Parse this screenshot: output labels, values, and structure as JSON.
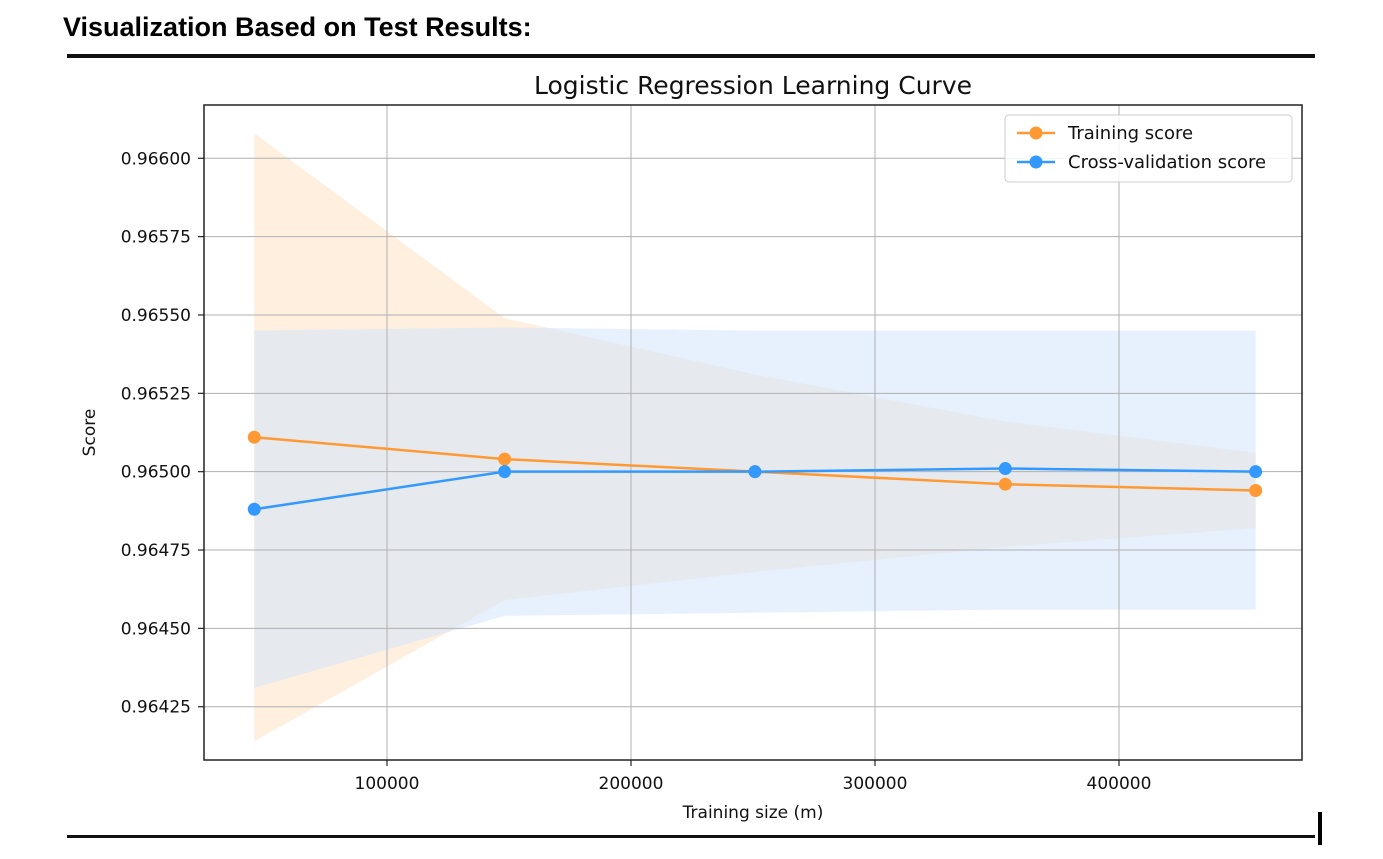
{
  "page": {
    "heading": "Visualization Based on Test Results:"
  },
  "chart_data": {
    "type": "line",
    "title": "Logistic Regression Learning Curve",
    "xlabel": "Training size (m)",
    "ylabel": "Score",
    "xlim": [
      25000,
      475000
    ],
    "ylim": [
      0.96408,
      0.96617
    ],
    "x_ticks": [
      100000,
      200000,
      300000,
      400000
    ],
    "x_tick_labels": [
      "100000",
      "200000",
      "300000",
      "400000"
    ],
    "y_ticks": [
      0.96425,
      0.9645,
      0.96475,
      0.965,
      0.96525,
      0.9655,
      0.96575,
      0.966
    ],
    "y_tick_labels": [
      "0.96425",
      "0.96450",
      "0.96475",
      "0.96500",
      "0.96525",
      "0.96550",
      "0.96575",
      "0.96600"
    ],
    "grid": true,
    "legend_position": "upper right",
    "x": [
      45600,
      148200,
      250800,
      353400,
      456000
    ],
    "series": [
      {
        "name": "Training score",
        "color": "#ff9933",
        "band_color": "#ffe9d4",
        "values": [
          0.96511,
          0.96504,
          0.965,
          0.96496,
          0.96494
        ],
        "band_upper": [
          0.96608,
          0.96549,
          0.96531,
          0.96516,
          0.96506
        ],
        "band_lower": [
          0.96414,
          0.96459,
          0.96468,
          0.96476,
          0.96482
        ]
      },
      {
        "name": "Cross-validation score",
        "color": "#3399ff",
        "band_color": "#d2e6fb",
        "values": [
          0.96488,
          0.965,
          0.965,
          0.96501,
          0.965
        ],
        "band_upper": [
          0.96545,
          0.96546,
          0.96545,
          0.96545,
          0.96545
        ],
        "band_lower": [
          0.96431,
          0.96454,
          0.96455,
          0.96456,
          0.96456
        ]
      }
    ]
  }
}
